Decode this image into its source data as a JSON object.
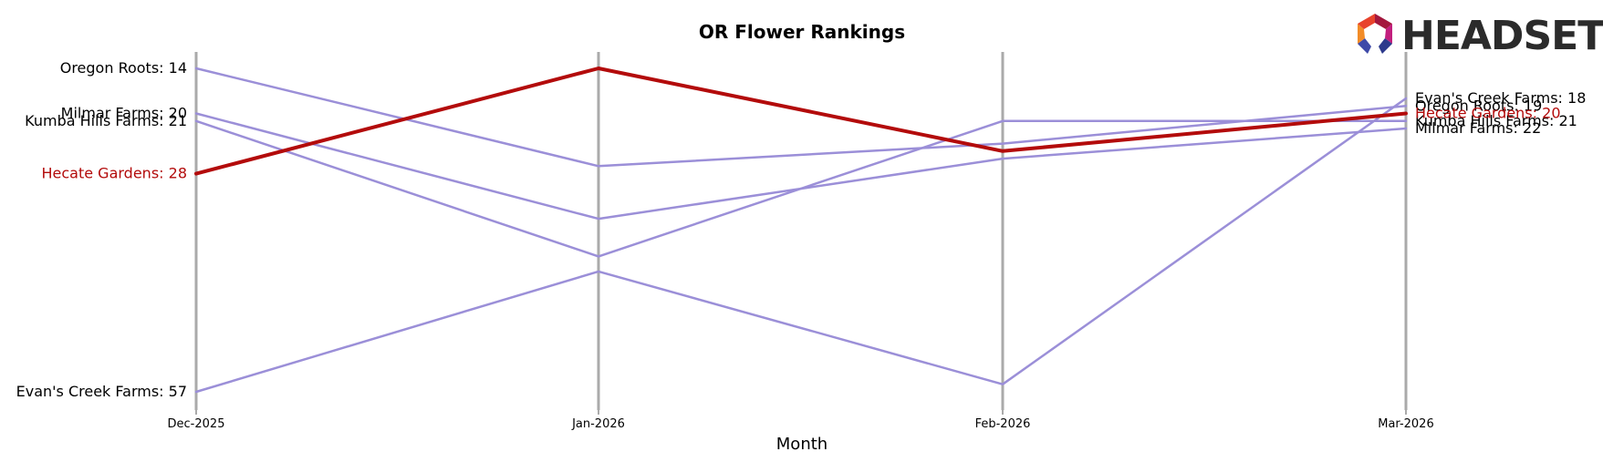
{
  "chart_data": {
    "type": "line",
    "title": "OR Flower Rankings",
    "xlabel": "Month",
    "ylabel": "",
    "x": [
      "Dec-2025",
      "Jan-2026",
      "Feb-2026",
      "Mar-2026"
    ],
    "y_inverted": true,
    "grid": "vertical lines at each month",
    "series": [
      {
        "name": "Oregon Roots",
        "values": [
          14,
          27,
          24,
          19
        ],
        "color": "#9b8fd8",
        "highlight": false
      },
      {
        "name": "Milmar Farms",
        "values": [
          20,
          34,
          26,
          22
        ],
        "color": "#9b8fd8",
        "highlight": false
      },
      {
        "name": "Kumba Hills Farms",
        "values": [
          21,
          39,
          21,
          21
        ],
        "color": "#9b8fd8",
        "highlight": false
      },
      {
        "name": "Evan's Creek Farms",
        "values": [
          57,
          41,
          56,
          18
        ],
        "color": "#9b8fd8",
        "highlight": false
      },
      {
        "name": "Hecate Gardens",
        "values": [
          28,
          14,
          25,
          20
        ],
        "color": "#b30b0b",
        "highlight": true
      }
    ]
  },
  "logo": {
    "text": "HEADSET"
  }
}
